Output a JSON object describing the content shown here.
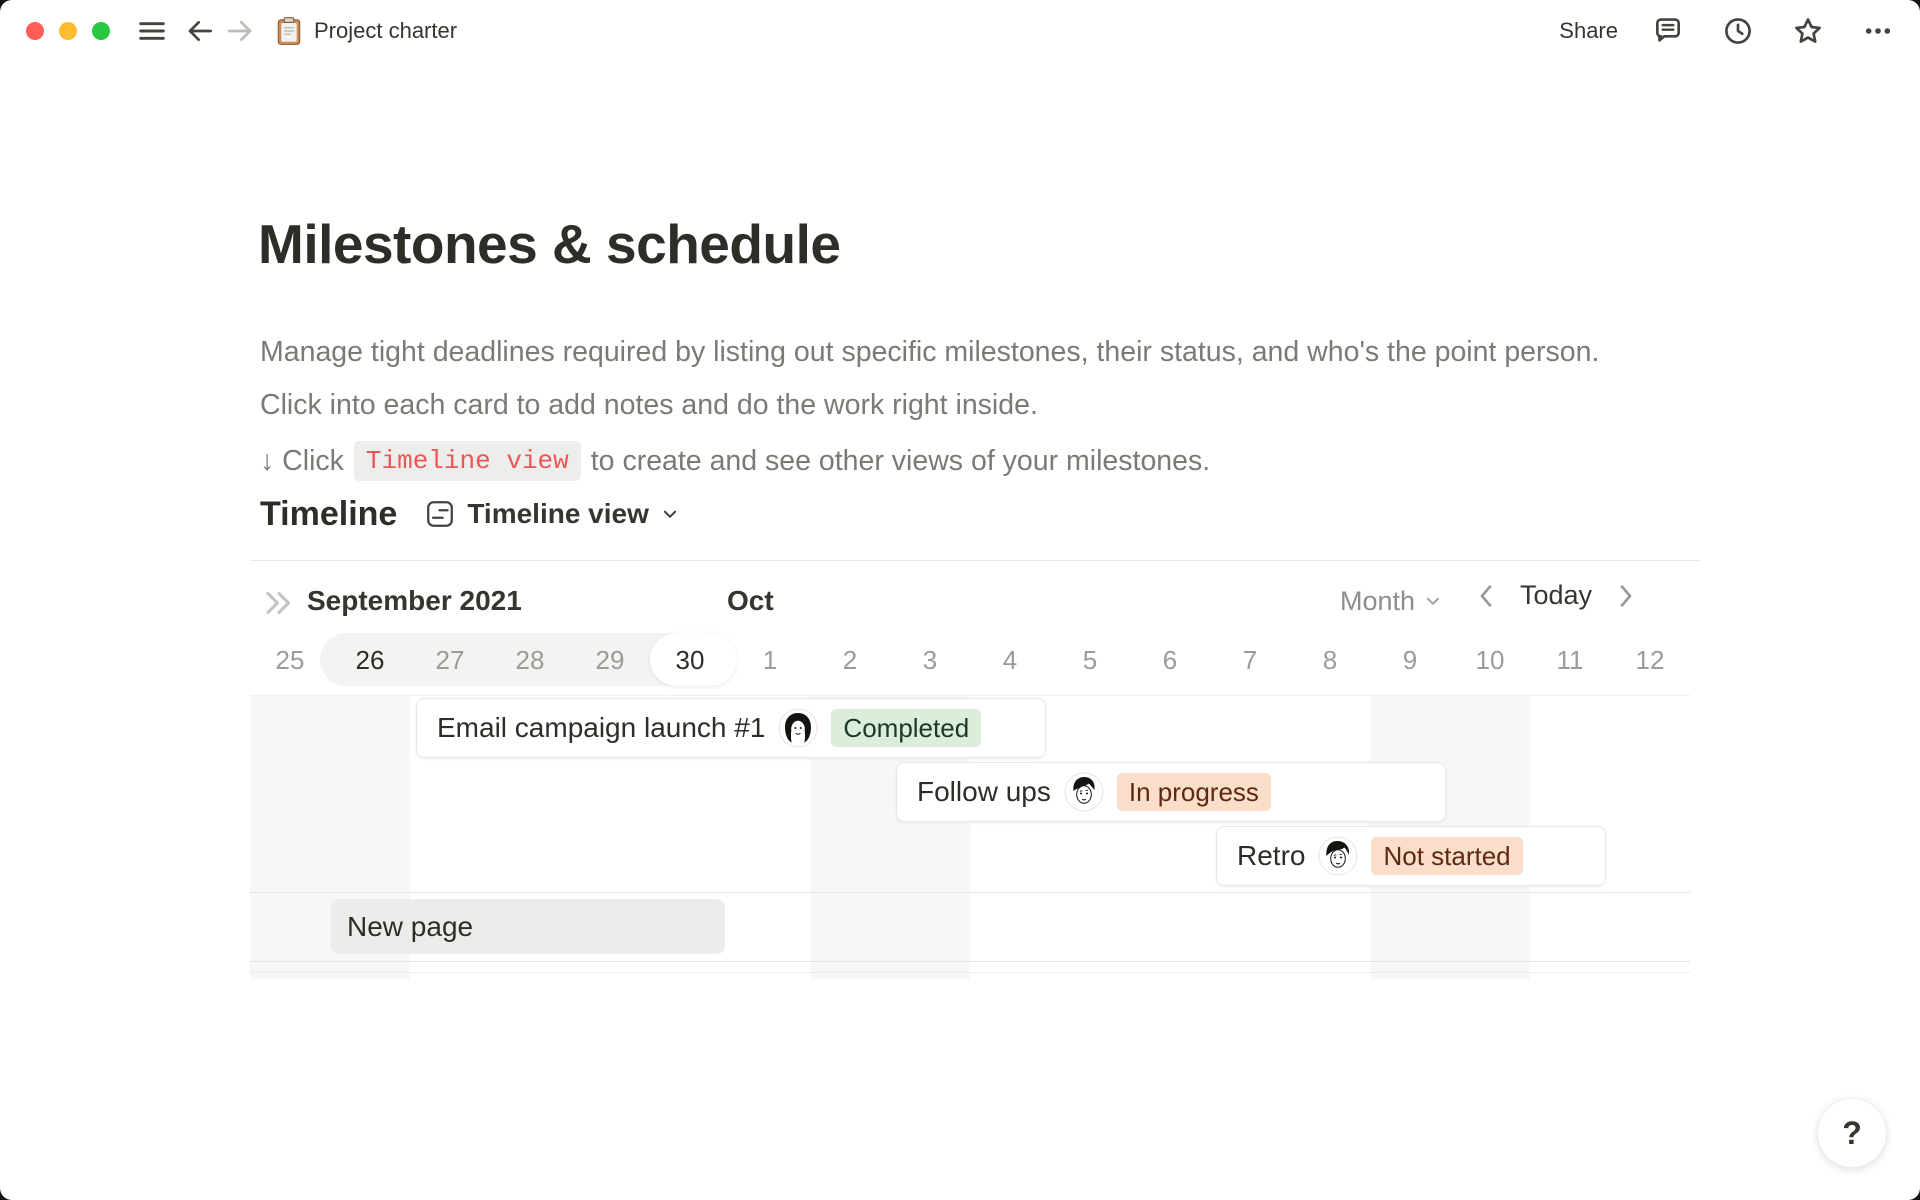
{
  "titlebar": {
    "title": "Project charter",
    "share_label": "Share"
  },
  "page": {
    "title": "Milestones & schedule",
    "description": "Manage tight deadlines required by listing out specific milestones, their status, and who's the point person. Click into each card to add notes and do the work right inside.",
    "hint_prefix": "↓ Click",
    "hint_code": "Timeline view",
    "hint_suffix": "to create and see other views of your milestones."
  },
  "section": {
    "heading": "Timeline",
    "view_label": "Timeline view"
  },
  "timeline": {
    "left_month_label": "September 2021",
    "right_month_label": "Oct",
    "scale_label": "Month",
    "today_label": "Today",
    "days": [
      {
        "label": "25"
      },
      {
        "label": "26",
        "emphasized": true
      },
      {
        "label": "27"
      },
      {
        "label": "28"
      },
      {
        "label": "29"
      },
      {
        "label": "30",
        "emphasized": true
      },
      {
        "label": "1"
      },
      {
        "label": "2"
      },
      {
        "label": "3"
      },
      {
        "label": "4"
      },
      {
        "label": "5"
      },
      {
        "label": "6"
      },
      {
        "label": "7"
      },
      {
        "label": "8"
      },
      {
        "label": "9"
      },
      {
        "label": "10"
      },
      {
        "label": "11"
      },
      {
        "label": "12"
      }
    ],
    "selected_range": {
      "start_index": 1,
      "end_index": 5,
      "today_index": 5
    },
    "weekend_start_indices": [
      0,
      7,
      14
    ],
    "rows": [
      {
        "title": "Email campaign launch #1",
        "avatar": "woman-bob-avatar",
        "status": "Completed",
        "status_color": "green",
        "start_index": 2,
        "span": 8
      },
      {
        "title": "Follow ups",
        "avatar": "man-short-hair-avatar",
        "status": "In progress",
        "status_color": "orange",
        "start_index": 8,
        "span": 7
      },
      {
        "title": "Retro",
        "avatar": "man-side-part-avatar",
        "status": "Not started",
        "status_color": "orange",
        "start_index": 12,
        "span": 5
      }
    ],
    "new_page": {
      "label": "New page",
      "start_index": 1,
      "span": 5
    }
  },
  "help": {
    "label": "?"
  },
  "colors": {
    "traffic_red": "#ff5f57",
    "traffic_yellow": "#febc2e",
    "traffic_green": "#28c840",
    "code_red": "#eb5757",
    "green_badge_bg": "#dbeddb",
    "green_badge_text": "#1c3829",
    "orange_badge_bg": "#fadec9",
    "orange_badge_text": "#5d2914"
  }
}
